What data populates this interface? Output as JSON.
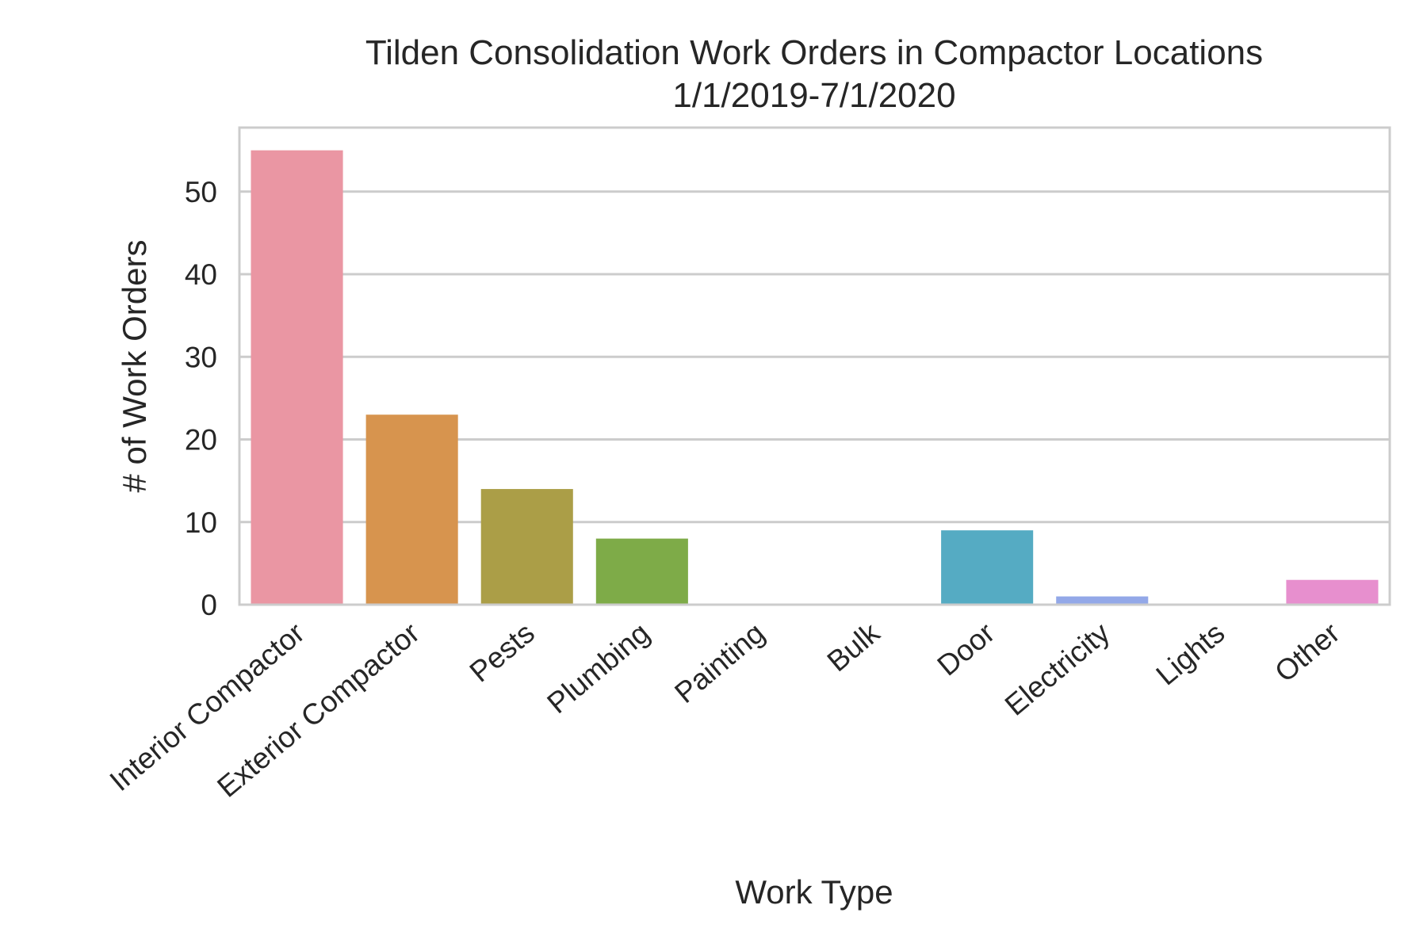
{
  "chart_data": {
    "type": "bar",
    "title": "Tilden Consolidation Work Orders in Compactor Locations",
    "subtitle": "1/1/2019-7/1/2020",
    "xlabel": "Work Type",
    "ylabel": "# of Work Orders",
    "categories": [
      "Interior Compactor",
      "Exterior Compactor",
      "Pests",
      "Plumbing",
      "Painting",
      "Bulk",
      "Door",
      "Electricity",
      "Lights",
      "Other"
    ],
    "values": [
      55,
      23,
      14,
      8,
      0,
      0,
      9,
      1,
      0,
      3
    ],
    "colors": [
      "#ea96a3",
      "#d7944e",
      "#ab9e47",
      "#7eab48",
      "#4fad7a",
      "#53ab9f",
      "#55abc3",
      "#93a8e8",
      "#d58ae6",
      "#e78fce"
    ],
    "yticks": [
      0,
      10,
      20,
      30,
      40,
      50
    ],
    "ylim": [
      0,
      57.75
    ],
    "grid": true,
    "legend": "none"
  }
}
